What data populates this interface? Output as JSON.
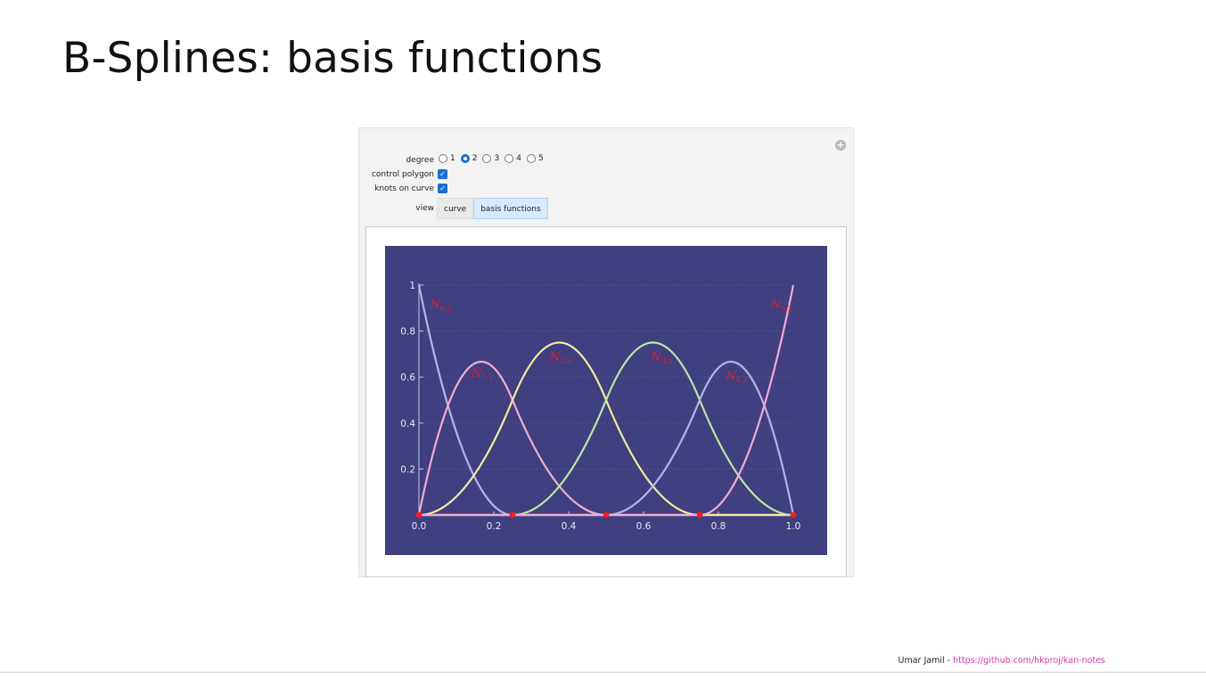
{
  "slide": {
    "title": "B-Splines: basis functions",
    "footer_author": "Umar Jamil - ",
    "footer_link": "https://github.com/hkproj/kan-notes"
  },
  "controls": {
    "degree_label": "degree",
    "degree_options": [
      "1",
      "2",
      "3",
      "4",
      "5"
    ],
    "degree_selected": "2",
    "control_polygon_label": "control polygon",
    "control_polygon_checked": true,
    "knots_on_curve_label": "knots on curve",
    "knots_on_curve_checked": true,
    "view_label": "view",
    "view_tabs": [
      "curve",
      "basis functions"
    ],
    "view_selected": "basis functions"
  },
  "colors": {
    "plot_background": "#403f7f",
    "knot": "#ff1a1a",
    "label": "#e0203a",
    "series": [
      "#b6b3e6",
      "#eeaed2",
      "#f2eba0",
      "#b9e6a6",
      "#b6b3e6",
      "#eeaed2"
    ]
  },
  "chart_data": {
    "type": "line",
    "degree": 2,
    "knot_vector": [
      0,
      0,
      0,
      0.25,
      0.5,
      0.75,
      1,
      1,
      1
    ],
    "knots_shown": [
      0,
      0.25,
      0.5,
      0.75,
      1
    ],
    "xlim": [
      0,
      1
    ],
    "ylim": [
      0,
      1
    ],
    "x_ticks": [
      "0.0",
      "0.2",
      "0.4",
      "0.6",
      "0.8",
      "1.0"
    ],
    "y_ticks": [
      "0.2",
      "0.4",
      "0.6",
      "0.8",
      "1"
    ],
    "grid": "dotted horizontal",
    "series": [
      {
        "name": "N0,2",
        "label_main": "N",
        "label_sub": "0,2"
      },
      {
        "name": "N1,2",
        "label_main": "N",
        "label_sub": "1,2"
      },
      {
        "name": "N2,2",
        "label_main": "N",
        "label_sub": "2,2"
      },
      {
        "name": "N3,2",
        "label_main": "N",
        "label_sub": "3,2"
      },
      {
        "name": "N4,2",
        "label_main": "N",
        "label_sub": "4,2"
      },
      {
        "name": "N5,2",
        "label_main": "N",
        "label_sub": "5,2"
      }
    ]
  }
}
